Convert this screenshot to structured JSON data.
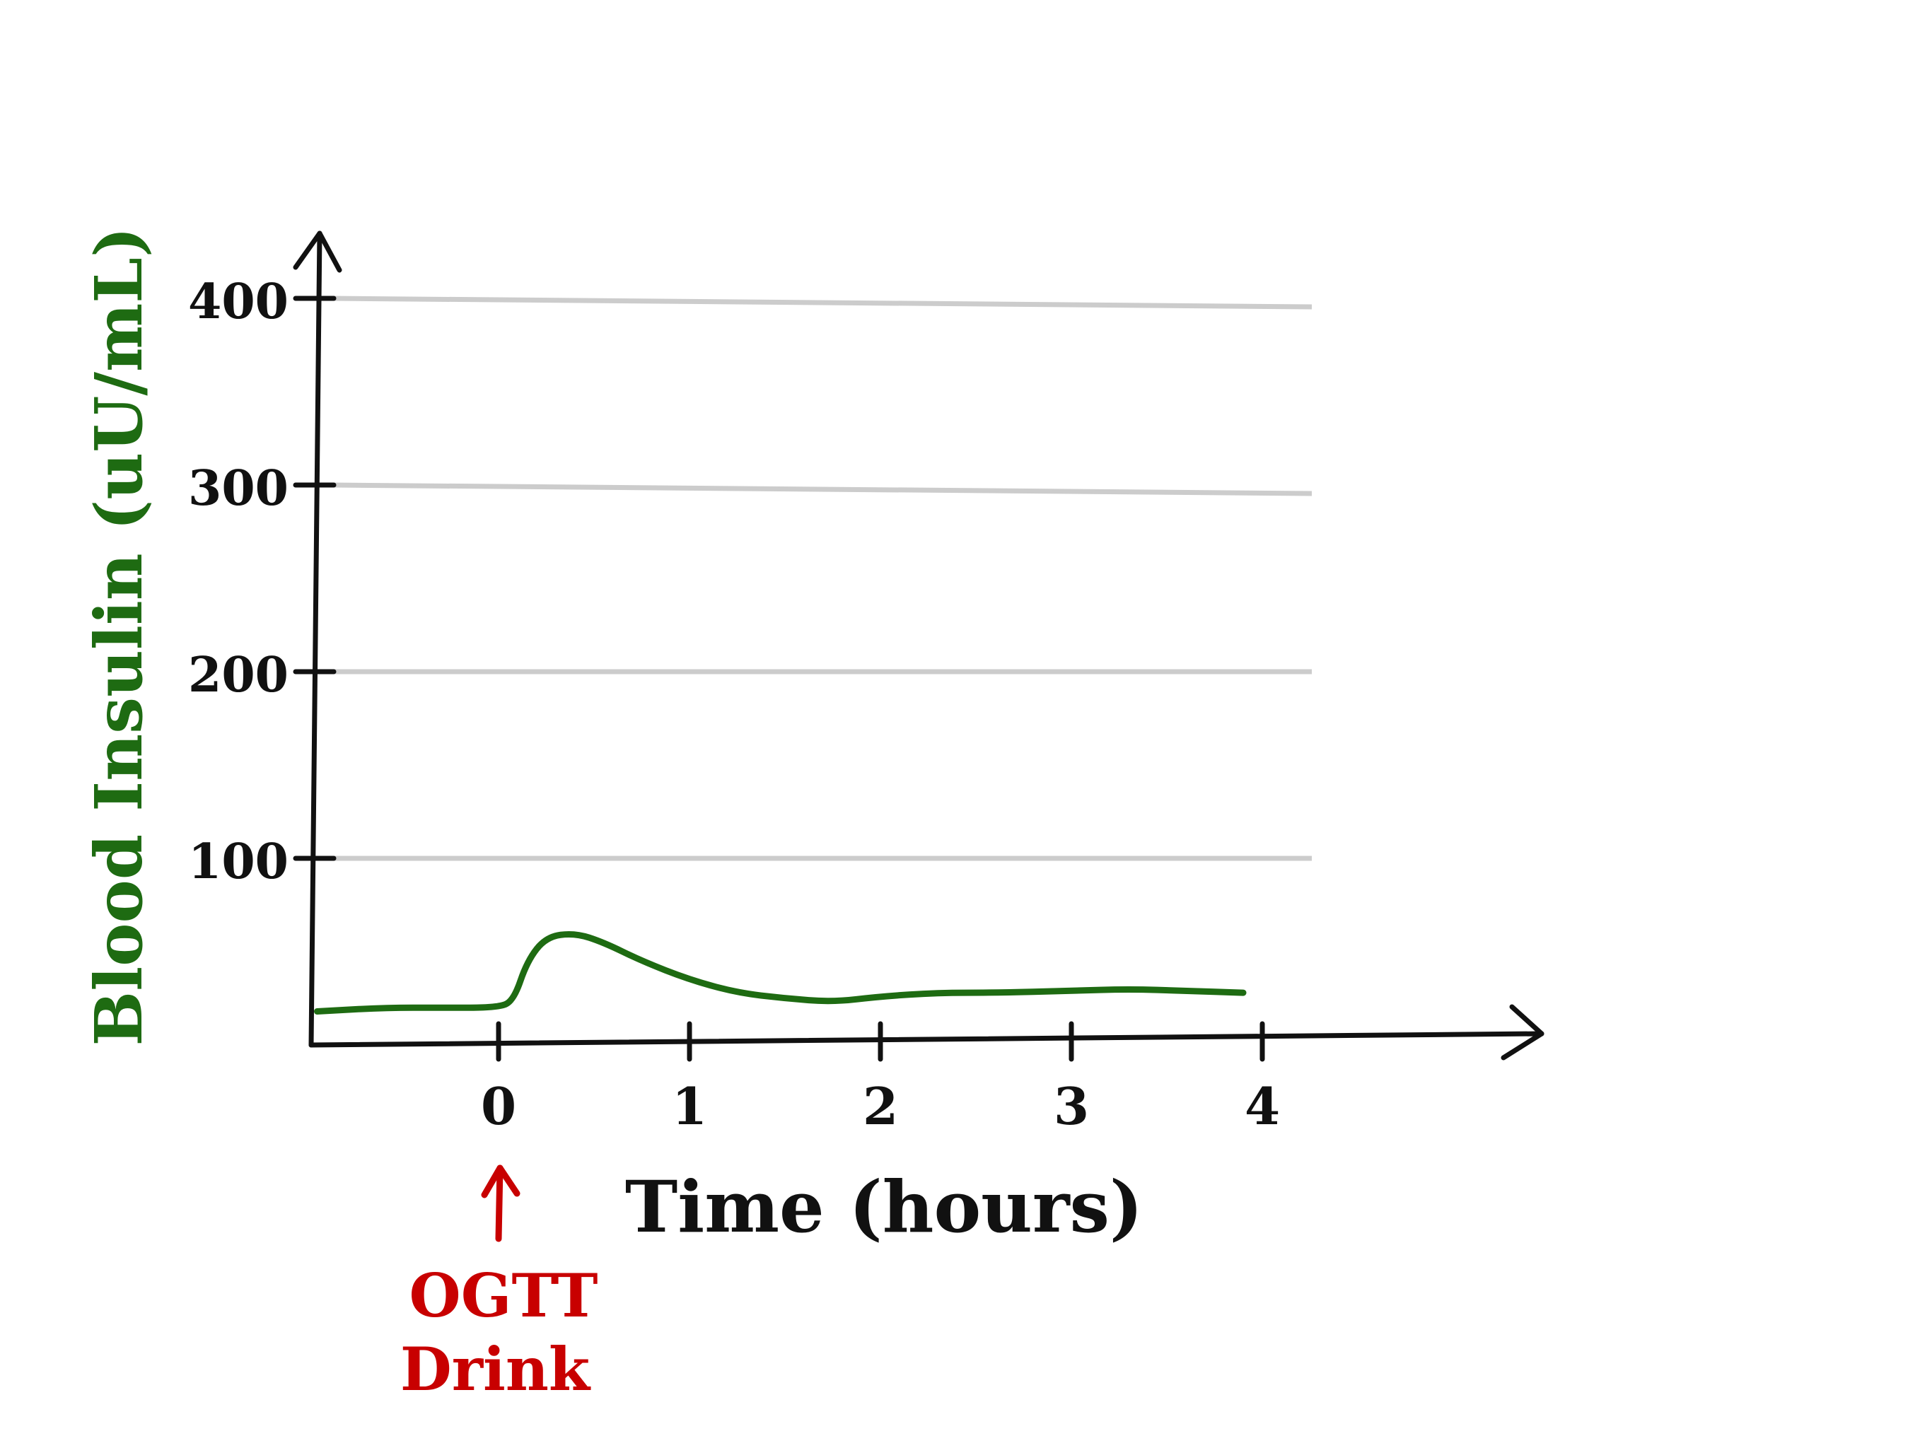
{
  "chart_data": {
    "type": "line",
    "xlabel": "Time (hours)",
    "ylabel": "Blood Insulin (uU/mL)",
    "x_ticks": [
      "0",
      "1",
      "2",
      "3",
      "4"
    ],
    "y_ticks": [
      "100",
      "200",
      "300",
      "400"
    ],
    "xlim": [
      -1,
      4
    ],
    "ylim": [
      0,
      400
    ],
    "grid": true,
    "series": [
      {
        "color": "#1e6b12",
        "x": [
          -0.95,
          -0.6,
          -0.3,
          0.0,
          0.08,
          0.15,
          0.25,
          0.4,
          0.55,
          0.75,
          1.0,
          1.25,
          1.5,
          1.75,
          2.0,
          2.3,
          2.6,
          3.0,
          3.3,
          3.6,
          3.9
        ],
        "y": [
          18,
          20,
          20,
          20,
          24,
          45,
          58,
          60,
          55,
          45,
          35,
          28,
          25,
          23,
          26,
          28,
          28,
          29,
          30,
          29,
          28
        ]
      }
    ],
    "annotation": {
      "text_line1": "OGTT",
      "text_line2": "Drink",
      "x": 0,
      "color": "#c80000"
    },
    "colors": {
      "axis": "#111111",
      "grid": "#cccccc",
      "series": "#1e6b12",
      "ylabel": "#1e6b12",
      "annotation": "#c80000"
    }
  }
}
